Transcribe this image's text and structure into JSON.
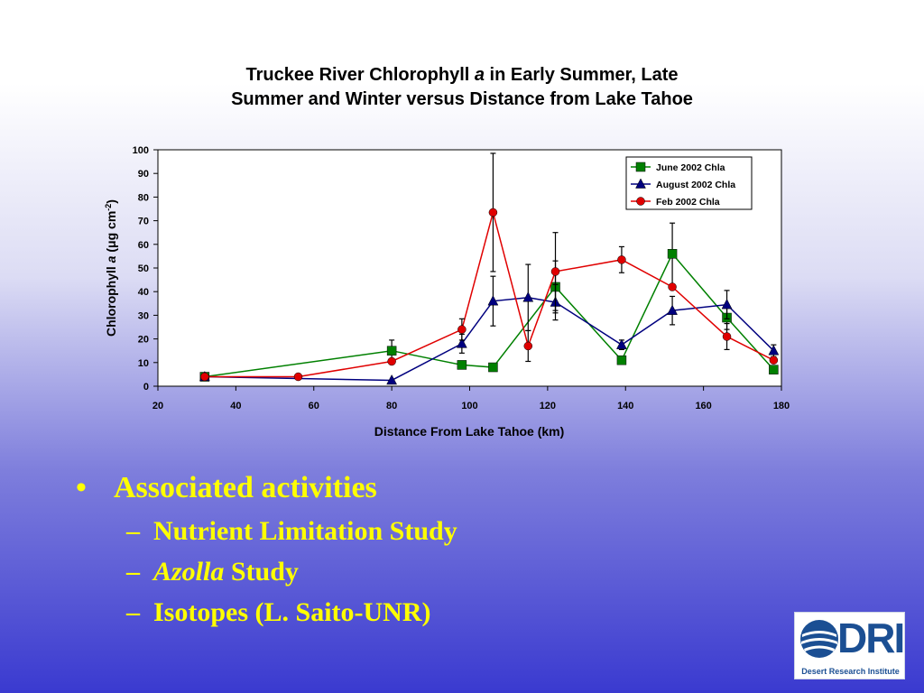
{
  "chart_data": {
    "type": "line",
    "title_parts": [
      "Truckee River Chlorophyll ",
      "a",
      " in Early Summer, Late",
      "Summer and Winter versus Distance from Lake Tahoe"
    ],
    "xlabel": "Distance From Lake Tahoe (km)",
    "ylabel_parts": [
      "Chlorophyll ",
      "a",
      " (",
      "μ",
      "g cm",
      "-2",
      ")"
    ],
    "xlim": [
      20,
      180
    ],
    "ylim": [
      0,
      100
    ],
    "xticks": [
      20,
      40,
      60,
      80,
      100,
      120,
      140,
      160,
      180
    ],
    "yticks": [
      0,
      10,
      20,
      30,
      40,
      50,
      60,
      70,
      80,
      90,
      100
    ],
    "legend_position": "top-right",
    "grid": false,
    "series": [
      {
        "name": "June 2002 Chla",
        "color": "#008000",
        "marker": "square",
        "x": [
          32,
          80,
          98,
          106,
          122,
          139,
          152,
          166,
          178
        ],
        "y": [
          4,
          15,
          9,
          8,
          42,
          11,
          56,
          29,
          7
        ],
        "err": [
          0,
          4.5,
          1,
          0,
          11,
          0,
          13,
          5,
          0
        ]
      },
      {
        "name": "August 2002 Chla",
        "color": "#00007f",
        "marker": "triangle",
        "x": [
          32,
          80,
          98,
          106,
          115,
          122,
          139,
          152,
          166,
          178
        ],
        "y": [
          4,
          2.5,
          18,
          36,
          37.5,
          35.5,
          17.5,
          32,
          34.5,
          15
        ],
        "err": [
          0,
          0,
          4,
          10.5,
          14,
          7.5,
          2,
          6,
          6,
          2.5
        ]
      },
      {
        "name": "Feb 2002 Chla",
        "color": "#e00000",
        "marker": "circle",
        "x": [
          32,
          56,
          80,
          98,
          106,
          115,
          122,
          139,
          152,
          166,
          178
        ],
        "y": [
          4,
          4,
          10.5,
          24,
          73.5,
          17,
          48.5,
          53.5,
          42,
          21,
          11
        ],
        "err": [
          0,
          0,
          0,
          4.5,
          25,
          6.5,
          16.5,
          5.5,
          0,
          5.5,
          0
        ]
      }
    ]
  },
  "bullets": {
    "main": {
      "marker": "•",
      "text": "Associated activities"
    },
    "subs": [
      {
        "marker": "–",
        "parts": [
          {
            "text": "Nutrient Limitation Study",
            "italic": false
          }
        ]
      },
      {
        "marker": "–",
        "parts": [
          {
            "text": "Azolla",
            "italic": true
          },
          {
            "text": " Study",
            "italic": false
          }
        ]
      },
      {
        "marker": "–",
        "parts": [
          {
            "text": "Isotopes (L. Saito-UNR)",
            "italic": false
          }
        ]
      }
    ]
  },
  "logo": {
    "mark": "DRI",
    "name": "Desert Research Institute"
  }
}
